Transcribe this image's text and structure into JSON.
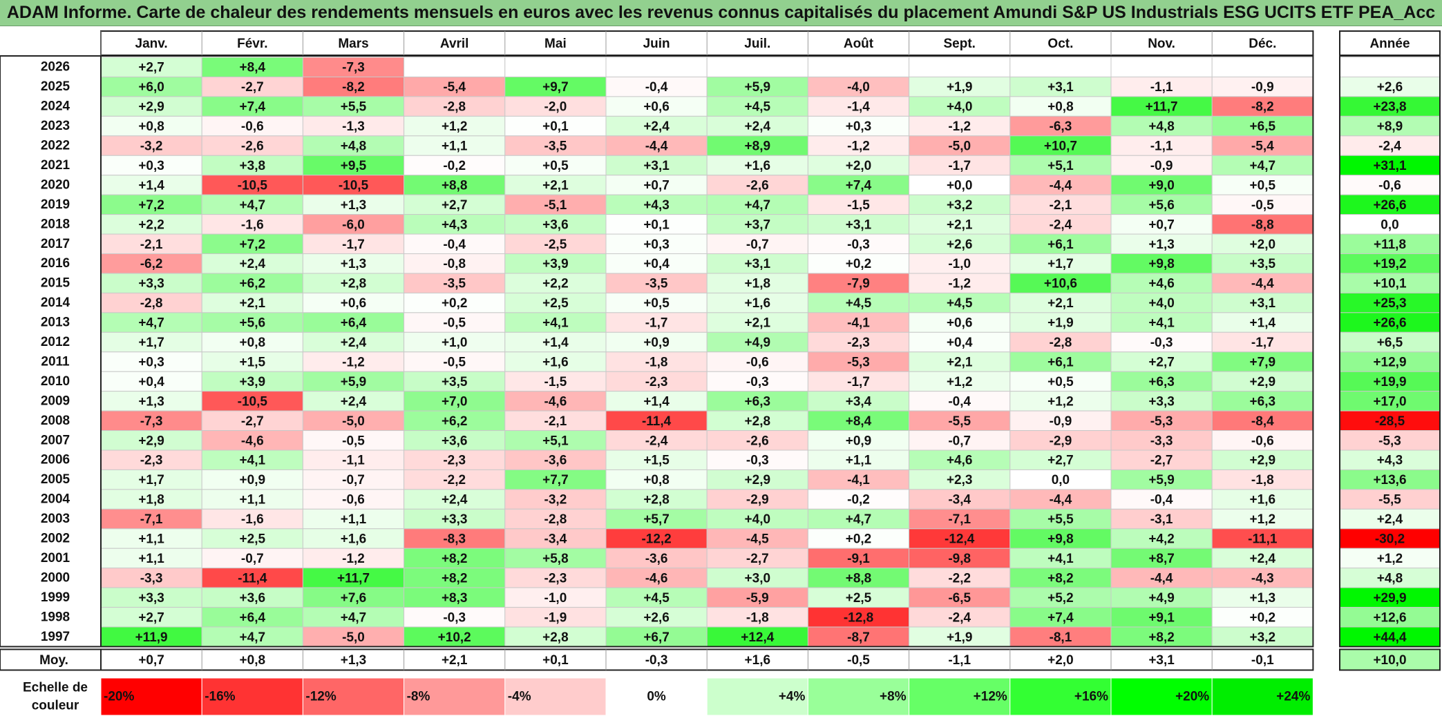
{
  "title": "ADAM Informe. Carte de chaleur des rendements mensuels en euros avec les revenus connus capitalisés du placement Amundi S&P US Industrials ESG UCITS ETF PEA_Acc",
  "chart_data": {
    "type": "heatmap",
    "title": "ADAM Informe. Carte de chaleur des rendements mensuels en euros avec les revenus connus capitalisés du placement Amundi S&P US Industrials ESG UCITS ETF PEA_Acc",
    "columns": [
      "Janv.",
      "Févr.",
      "Mars",
      "Avril",
      "Mai",
      "Juin",
      "Juil.",
      "Août",
      "Sept.",
      "Oct.",
      "Nov.",
      "Déc."
    ],
    "annual_header": "Année",
    "rows": [
      {
        "year": "2026",
        "values": [
          "+2,7",
          "+8,4",
          "-7,3",
          "",
          "",
          "",
          "",
          "",
          "",
          "",
          "",
          ""
        ],
        "annual": ""
      },
      {
        "year": "2025",
        "values": [
          "+6,0",
          "-2,7",
          "-8,2",
          "-5,4",
          "+9,7",
          "-0,4",
          "+5,9",
          "-4,0",
          "+1,9",
          "+3,1",
          "-1,1",
          "-0,9"
        ],
        "annual": "+2,6"
      },
      {
        "year": "2024",
        "values": [
          "+2,9",
          "+7,4",
          "+5,5",
          "-2,8",
          "-2,0",
          "+0,6",
          "+4,5",
          "-1,4",
          "+4,0",
          "+0,8",
          "+11,7",
          "-8,2"
        ],
        "annual": "+23,8"
      },
      {
        "year": "2023",
        "values": [
          "+0,8",
          "-0,6",
          "-1,3",
          "+1,2",
          "+0,1",
          "+2,4",
          "+2,4",
          "+0,3",
          "-1,2",
          "-6,3",
          "+4,8",
          "+6,5"
        ],
        "annual": "+8,9"
      },
      {
        "year": "2022",
        "values": [
          "-3,2",
          "-2,6",
          "+4,8",
          "+1,1",
          "-3,5",
          "-4,4",
          "+8,9",
          "-1,2",
          "-5,0",
          "+10,7",
          "-1,1",
          "-5,4"
        ],
        "annual": "-2,4"
      },
      {
        "year": "2021",
        "values": [
          "+0,3",
          "+3,8",
          "+9,5",
          "-0,2",
          "+0,5",
          "+3,1",
          "+1,6",
          "+2,0",
          "-1,7",
          "+5,1",
          "-0,9",
          "+4,7"
        ],
        "annual": "+31,1"
      },
      {
        "year": "2020",
        "values": [
          "+1,4",
          "-10,5",
          "-10,5",
          "+8,8",
          "+2,1",
          "+0,7",
          "-2,6",
          "+7,4",
          "+0,0",
          "-4,4",
          "+9,0",
          "+0,5"
        ],
        "annual": "-0,6"
      },
      {
        "year": "2019",
        "values": [
          "+7,2",
          "+4,7",
          "+1,3",
          "+2,7",
          "-5,1",
          "+4,3",
          "+4,7",
          "-1,5",
          "+3,2",
          "-2,1",
          "+5,6",
          "-0,5"
        ],
        "annual": "+26,6"
      },
      {
        "year": "2018",
        "values": [
          "+2,2",
          "-1,6",
          "-6,0",
          "+4,3",
          "+3,6",
          "+0,1",
          "+3,7",
          "+3,1",
          "+2,1",
          "-2,4",
          "+0,7",
          "-8,8"
        ],
        "annual": "0,0"
      },
      {
        "year": "2017",
        "values": [
          "-2,1",
          "+7,2",
          "-1,7",
          "-0,4",
          "-2,5",
          "+0,3",
          "-0,7",
          "-0,3",
          "+2,6",
          "+6,1",
          "+1,3",
          "+2,0"
        ],
        "annual": "+11,8"
      },
      {
        "year": "2016",
        "values": [
          "-6,2",
          "+2,4",
          "+1,3",
          "-0,8",
          "+3,9",
          "+0,4",
          "+3,1",
          "+0,2",
          "-1,0",
          "+1,7",
          "+9,8",
          "+3,5"
        ],
        "annual": "+19,2"
      },
      {
        "year": "2015",
        "values": [
          "+3,3",
          "+6,2",
          "+2,8",
          "-3,5",
          "+2,2",
          "-3,5",
          "+1,8",
          "-7,9",
          "-1,2",
          "+10,6",
          "+4,6",
          "-4,4"
        ],
        "annual": "+10,1"
      },
      {
        "year": "2014",
        "values": [
          "-2,8",
          "+2,1",
          "+0,6",
          "+0,2",
          "+2,5",
          "+0,5",
          "+1,6",
          "+4,5",
          "+4,5",
          "+2,1",
          "+4,0",
          "+3,1"
        ],
        "annual": "+25,3"
      },
      {
        "year": "2013",
        "values": [
          "+4,7",
          "+5,6",
          "+6,4",
          "-0,5",
          "+4,1",
          "-1,7",
          "+2,1",
          "-4,1",
          "+0,6",
          "+1,9",
          "+4,1",
          "+1,4"
        ],
        "annual": "+26,6"
      },
      {
        "year": "2012",
        "values": [
          "+1,7",
          "+0,8",
          "+2,4",
          "+1,0",
          "+1,4",
          "+0,9",
          "+4,9",
          "-2,3",
          "+0,4",
          "-2,8",
          "-0,3",
          "-1,7"
        ],
        "annual": "+6,5"
      },
      {
        "year": "2011",
        "values": [
          "+0,3",
          "+1,5",
          "-1,2",
          "-0,5",
          "+1,6",
          "-1,8",
          "-0,6",
          "-5,3",
          "+2,1",
          "+6,1",
          "+2,7",
          "+7,9"
        ],
        "annual": "+12,9"
      },
      {
        "year": "2010",
        "values": [
          "+0,4",
          "+3,9",
          "+5,9",
          "+3,5",
          "-1,5",
          "-2,3",
          "-0,3",
          "-1,7",
          "+1,2",
          "+0,5",
          "+6,3",
          "+2,9"
        ],
        "annual": "+19,9"
      },
      {
        "year": "2009",
        "values": [
          "+1,3",
          "-10,5",
          "+2,4",
          "+7,0",
          "-4,6",
          "+1,4",
          "+6,3",
          "+3,4",
          "-0,4",
          "+1,2",
          "+3,3",
          "+6,3"
        ],
        "annual": "+17,0"
      },
      {
        "year": "2008",
        "values": [
          "-7,3",
          "-2,7",
          "-5,0",
          "+6,2",
          "-2,1",
          "-11,4",
          "+2,8",
          "+8,4",
          "-5,5",
          "-0,9",
          "-5,3",
          "-8,4"
        ],
        "annual": "-28,5"
      },
      {
        "year": "2007",
        "values": [
          "+2,9",
          "-4,6",
          "-0,5",
          "+3,6",
          "+5,1",
          "-2,4",
          "-2,6",
          "+0,9",
          "-0,7",
          "-2,9",
          "-3,3",
          "-0,6"
        ],
        "annual": "-5,3"
      },
      {
        "year": "2006",
        "values": [
          "-2,3",
          "+4,1",
          "-1,1",
          "-2,3",
          "-3,6",
          "+1,5",
          "-0,3",
          "+1,1",
          "+4,6",
          "+2,7",
          "-2,7",
          "+2,9"
        ],
        "annual": "+4,3"
      },
      {
        "year": "2005",
        "values": [
          "+1,7",
          "+0,9",
          "-0,7",
          "-2,2",
          "+7,7",
          "+0,8",
          "+2,9",
          "-4,1",
          "+2,3",
          "0,0",
          "+5,9",
          "-1,8"
        ],
        "annual": "+13,6"
      },
      {
        "year": "2004",
        "values": [
          "+1,8",
          "+1,1",
          "-0,6",
          "+2,4",
          "-3,2",
          "+2,8",
          "-2,9",
          "-0,2",
          "-3,4",
          "-4,4",
          "-0,4",
          "+1,6"
        ],
        "annual": "-5,5"
      },
      {
        "year": "2003",
        "values": [
          "-7,1",
          "-1,6",
          "+1,1",
          "+3,3",
          "-2,8",
          "+5,7",
          "+4,0",
          "+4,7",
          "-7,1",
          "+5,5",
          "-3,1",
          "+1,2"
        ],
        "annual": "+2,4"
      },
      {
        "year": "2002",
        "values": [
          "+1,1",
          "+2,5",
          "+1,6",
          "-8,3",
          "-3,4",
          "-12,2",
          "-4,5",
          "+0,2",
          "-12,4",
          "+9,8",
          "+4,2",
          "-11,1"
        ],
        "annual": "-30,2"
      },
      {
        "year": "2001",
        "values": [
          "+1,1",
          "-0,7",
          "-1,2",
          "+8,2",
          "+5,8",
          "-3,6",
          "-2,7",
          "-9,1",
          "-9,8",
          "+4,1",
          "+8,7",
          "+2,4"
        ],
        "annual": "+1,2"
      },
      {
        "year": "2000",
        "values": [
          "-3,3",
          "-11,4",
          "+11,7",
          "+8,2",
          "-2,3",
          "-4,6",
          "+3,0",
          "+8,8",
          "-2,2",
          "+8,2",
          "-4,4",
          "-4,3"
        ],
        "annual": "+4,8"
      },
      {
        "year": "1999",
        "values": [
          "+3,3",
          "+3,6",
          "+7,6",
          "+8,3",
          "-1,0",
          "+4,5",
          "-5,9",
          "+2,5",
          "-6,5",
          "+5,2",
          "+4,9",
          "+1,3"
        ],
        "annual": "+29,9"
      },
      {
        "year": "1998",
        "values": [
          "+2,7",
          "+6,4",
          "+4,7",
          "-0,3",
          "-1,9",
          "+2,6",
          "-1,8",
          "-12,8",
          "-2,4",
          "+7,4",
          "+9,1",
          "+0,2"
        ],
        "annual": "+12,6"
      },
      {
        "year": "1997",
        "values": [
          "+11,9",
          "+4,7",
          "-5,0",
          "+10,2",
          "+2,8",
          "+6,7",
          "+12,4",
          "-8,7",
          "+1,9",
          "-8,1",
          "+8,2",
          "+3,2"
        ],
        "annual": "+44,4"
      }
    ],
    "average_row": {
      "label": "Moy.",
      "values": [
        "+0,7",
        "+0,8",
        "+1,3",
        "+2,1",
        "+0,1",
        "-0,3",
        "+1,6",
        "-0,5",
        "-1,1",
        "+2,0",
        "+3,1",
        "-0,1"
      ],
      "annual": "+10,0"
    },
    "scale": {
      "label_lines": [
        "Echelle de",
        "couleur"
      ],
      "stops": [
        {
          "label": "-20%",
          "value": -20,
          "color": "#ff0000"
        },
        {
          "label": "-16%",
          "value": -16,
          "color": "#ff3333"
        },
        {
          "label": "-12%",
          "value": -12,
          "color": "#ff6666"
        },
        {
          "label": "-8%",
          "value": -8,
          "color": "#ff9999"
        },
        {
          "label": "-4%",
          "value": -4,
          "color": "#ffcccc"
        },
        {
          "label": "0%",
          "value": 0,
          "color": "#ffffff"
        },
        {
          "label": "+4%",
          "value": 4,
          "color": "#ccffcc"
        },
        {
          "label": "+8%",
          "value": 8,
          "color": "#99ff99"
        },
        {
          "label": "+12%",
          "value": 12,
          "color": "#66ff66"
        },
        {
          "label": "+16%",
          "value": 16,
          "color": "#33ff33"
        },
        {
          "label": "+20%",
          "value": 20,
          "color": "#00ff00"
        },
        {
          "label": "+24%",
          "value": 24,
          "color": "#00ee00"
        }
      ]
    },
    "monthly_color_range": [
      -16,
      16
    ],
    "annual_color_range": [
      -30,
      30
    ]
  }
}
